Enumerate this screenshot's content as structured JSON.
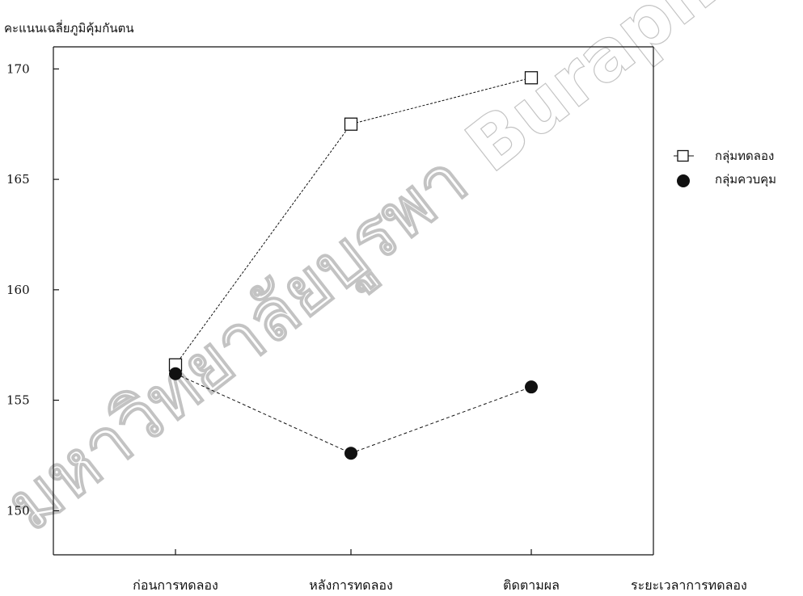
{
  "chart_data": {
    "type": "line",
    "title": "",
    "ylabel": "คะแนนเฉลี่ยภูมิคุ้มกันตน",
    "xlabel": "ระยะเวลาการทดลอง",
    "categories": [
      "ก่อนการทดลอง",
      "หลังการทดลอง",
      "ติดตามผล"
    ],
    "ylim": [
      148,
      171
    ],
    "yticks": [
      150,
      155,
      160,
      165,
      170
    ],
    "grid": false,
    "legend_position": "right",
    "series": [
      {
        "name": "กลุ่มทดลอง",
        "values": [
          156.6,
          167.5,
          169.6
        ],
        "marker": "open-square",
        "color": "#111111"
      },
      {
        "name": "กลุ่มควบคุม",
        "values": [
          156.2,
          152.6,
          155.6
        ],
        "marker": "filled-circle",
        "color": "#111111"
      }
    ]
  },
  "watermark": {
    "text": "มหาวิทยาลัยบูรพา Burapha University"
  }
}
